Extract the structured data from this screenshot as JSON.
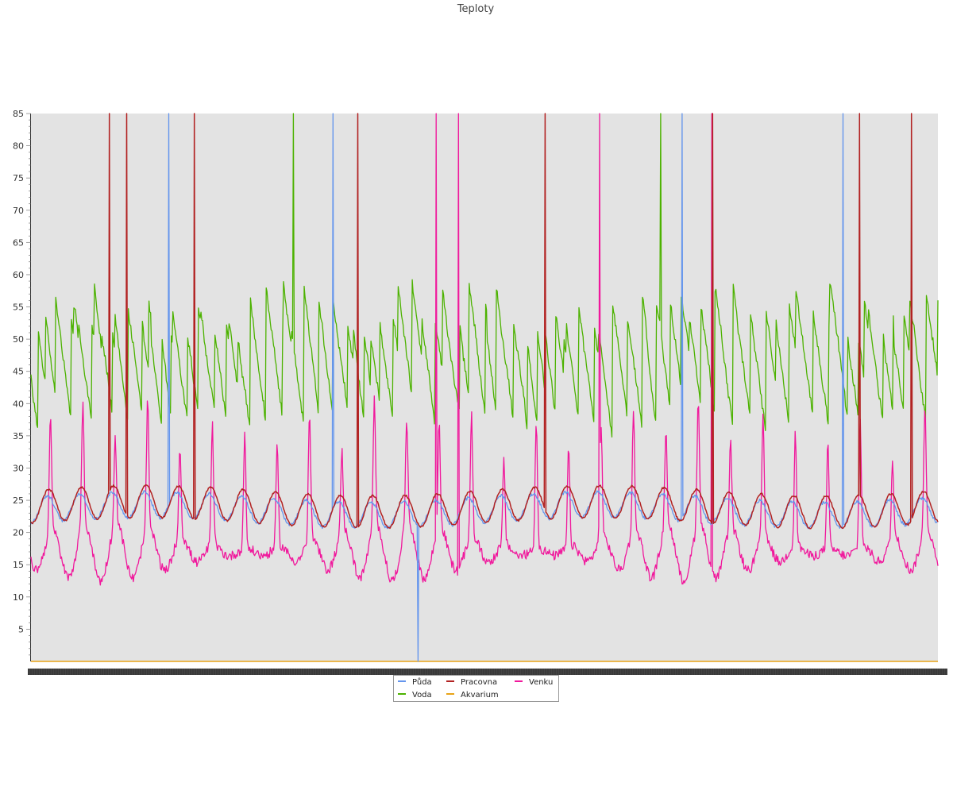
{
  "chart_data": {
    "type": "line",
    "title": "Teploty",
    "xlabel": "",
    "ylabel": "",
    "ylim": [
      0,
      85
    ],
    "yticks": [
      5,
      10,
      15,
      20,
      25,
      30,
      35,
      40,
      45,
      50,
      55,
      60,
      65,
      70,
      75,
      80,
      85
    ],
    "grid": false,
    "legend_position": "bottom-center",
    "x_tick_labels_visible": false,
    "series": [
      {
        "name": "Půda",
        "color": "#6495ED",
        "baseline": 23.5,
        "amplitude": 2,
        "spike_positions": [
          0.152,
          0.333,
          0.718,
          0.895
        ],
        "spike_values": [
          85,
          85,
          85,
          85
        ],
        "dip_positions": [
          0.427
        ],
        "dip_values": [
          0
        ]
      },
      {
        "name": "Voda",
        "color": "#4CB200",
        "baseline": 45,
        "low": 35,
        "high": 59,
        "spike_positions": [
          0.289,
          0.694
        ],
        "spike_values": [
          85,
          85
        ]
      },
      {
        "name": "Akvarium",
        "color": "#E8A317",
        "constant": 0
      },
      {
        "name": "Pracovna",
        "color": "#B22222",
        "baseline": 24,
        "amplitude": 2.5,
        "spike_positions": [
          0.086,
          0.106,
          0.18,
          0.36,
          0.567,
          0.752,
          0.914,
          0.971
        ],
        "spike_values": [
          85,
          85,
          85,
          85,
          85,
          85,
          85,
          85
        ]
      },
      {
        "name": "Venku",
        "color": "#F0189C",
        "baseline": 19,
        "low": 10,
        "high": 45,
        "spike_positions": [
          0.447,
          0.471,
          0.627,
          0.751
        ],
        "spike_values": [
          85,
          85,
          85,
          85
        ]
      }
    ]
  },
  "colors": {
    "plot_background": "#E3E3E3",
    "axis": "#333333",
    "x_axis_band": "#444444"
  }
}
